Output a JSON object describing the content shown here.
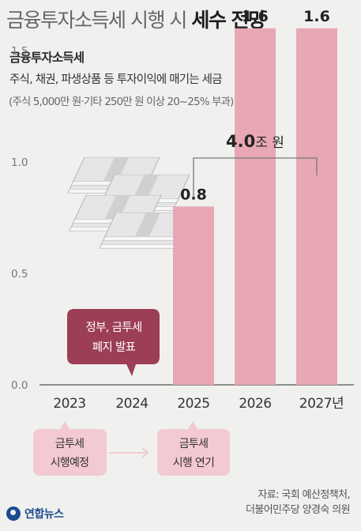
{
  "title": {
    "light": "금융투자소득세 시행 시 ",
    "bold": "세수 전망"
  },
  "subtitle": "금융투자소득세",
  "description": "주식, 채권, 파생상품 등 투자이익에 매기는 세금",
  "note": "(주식 5,000만 원·기타 250만 원 이상 20~25% 부과)",
  "total_label": "4.0조 원",
  "callouts": {
    "abolish": [
      "정부, 금투세",
      "폐지 발표"
    ],
    "planned": [
      "금투세",
      "시행예정"
    ],
    "delayed": [
      "금투세",
      "시행 연기"
    ]
  },
  "source": [
    "자료: 국회 예산정책처,",
    "더불어민주당 양경숙 의원"
  ],
  "logo_text": "연합뉴스",
  "colors": {
    "bar": "#e8a7b4",
    "callout_dark": "#9c3e56",
    "callout_light": "#f3c9d2",
    "bracket": "#777777",
    "axis": "#555555"
  },
  "chart_data": {
    "type": "bar",
    "categories": [
      "2023",
      "2024",
      "2025",
      "2026",
      "2027년"
    ],
    "values": [
      null,
      null,
      0.8,
      1.6,
      1.6
    ],
    "value_labels": [
      "",
      "",
      "0.8",
      "1.6",
      "1.6"
    ],
    "ylim": [
      0,
      1.75
    ],
    "yticks": [
      0.0,
      0.5,
      1.0,
      1.5
    ],
    "ytick_labels": [
      "0.0",
      "0.5",
      "1.0",
      "1.5"
    ],
    "unit": "조 원",
    "total": 4.0
  }
}
